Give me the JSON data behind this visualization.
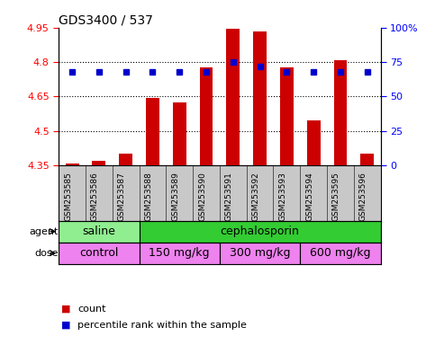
{
  "title": "GDS3400 / 537",
  "samples": [
    "GSM253585",
    "GSM253586",
    "GSM253587",
    "GSM253588",
    "GSM253589",
    "GSM253590",
    "GSM253591",
    "GSM253592",
    "GSM253593",
    "GSM253594",
    "GSM253595",
    "GSM253596"
  ],
  "bar_values": [
    4.36,
    4.37,
    4.4,
    4.645,
    4.625,
    4.775,
    4.945,
    4.935,
    4.775,
    4.545,
    4.81,
    4.4
  ],
  "bar_base": 4.35,
  "percentile_values": [
    68,
    68,
    68,
    68,
    68,
    68,
    75,
    72,
    68,
    68,
    68,
    68
  ],
  "bar_color": "#cc0000",
  "dot_color": "#0000cc",
  "ylim_left": [
    4.35,
    4.95
  ],
  "ylim_right": [
    0,
    100
  ],
  "yticks_left": [
    4.35,
    4.5,
    4.65,
    4.8,
    4.95
  ],
  "ytick_labels_left": [
    "4.35",
    "4.5",
    "4.65",
    "4.8",
    "4.95"
  ],
  "yticks_right": [
    0,
    25,
    50,
    75,
    100
  ],
  "ytick_labels_right": [
    "0",
    "25",
    "50",
    "75",
    "100%"
  ],
  "hlines": [
    4.5,
    4.65,
    4.8
  ],
  "agent_groups": [
    {
      "label": "saline",
      "start": 0,
      "end": 3,
      "color": "#90ee90"
    },
    {
      "label": "cephalosporin",
      "start": 3,
      "end": 12,
      "color": "#33cc33"
    }
  ],
  "dose_groups": [
    {
      "label": "control",
      "start": 0,
      "end": 3,
      "color": "#ee82ee"
    },
    {
      "label": "150 mg/kg",
      "start": 3,
      "end": 6,
      "color": "#ee82ee"
    },
    {
      "label": "300 mg/kg",
      "start": 6,
      "end": 9,
      "color": "#ee82ee"
    },
    {
      "label": "600 mg/kg",
      "start": 9,
      "end": 12,
      "color": "#ee82ee"
    }
  ],
  "legend_count_color": "#cc0000",
  "legend_dot_color": "#0000cc",
  "legend_count_label": "count",
  "legend_dot_label": "percentile rank within the sample",
  "agent_label": "agent",
  "dose_label": "dose",
  "bar_width": 0.5,
  "sample_bg_color": "#c8c8c8",
  "figsize": [
    4.83,
    3.84
  ],
  "dpi": 100
}
